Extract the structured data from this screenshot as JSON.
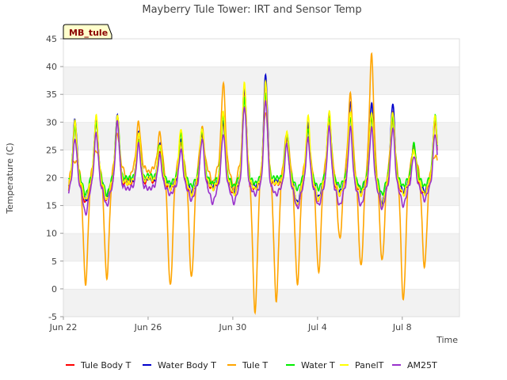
{
  "chart_data": {
    "type": "line",
    "title": "Mayberry Tule Tower: IRT and Sensor Temp",
    "badge": "MB_tule",
    "xlabel": "Time",
    "ylabel": "Temperature (C)",
    "ylim": [
      -5,
      45
    ],
    "xlim": [
      0,
      18.7
    ],
    "yticks": [
      "-5",
      "0",
      "5",
      "10",
      "15",
      "20",
      "25",
      "30",
      "35",
      "40",
      "45"
    ],
    "xticks": [
      {
        "day": 0,
        "label": "Jun 22"
      },
      {
        "day": 4,
        "label": "Jun 26"
      },
      {
        "day": 8,
        "label": "Jun 30"
      },
      {
        "day": 12,
        "label": "Jul 4"
      },
      {
        "day": 16,
        "label": "Jul 8"
      }
    ],
    "days": [
      0.3,
      1.3,
      2.3,
      3.3,
      4.3,
      5.3,
      6.3,
      7.3,
      8.3,
      9.3,
      10.3,
      11.3,
      12.3,
      13.3,
      14.3,
      15.3,
      16.3,
      17.3
    ],
    "series": [
      {
        "name": "Tule Body T",
        "color": "#ff0000",
        "base": 19.0,
        "width": 2.6,
        "min": [
          15.5,
          16,
          19,
          20,
          18,
          17,
          18,
          17,
          18,
          19,
          15,
          16,
          17,
          17,
          15,
          17,
          17,
          16
        ],
        "max": [
          29,
          30,
          31,
          27,
          25,
          27,
          28,
          30,
          36,
          37,
          27,
          29,
          31,
          31,
          31,
          32,
          26,
          30
        ]
      },
      {
        "name": "Water Body T",
        "color": "#0000cc",
        "base": 19.5,
        "width": 2.6,
        "min": [
          16,
          16.5,
          19.5,
          20,
          18.5,
          17.5,
          18.5,
          17.5,
          18.5,
          19.5,
          15.5,
          16.5,
          17.5,
          17.5,
          15.5,
          17.5,
          17.5,
          16.5
        ],
        "max": [
          30.5,
          30.5,
          31,
          28,
          26,
          27,
          28.5,
          30.5,
          36.5,
          38.5,
          27.5,
          29.5,
          31.5,
          33.5,
          33.5,
          33.5,
          25.5,
          31
        ]
      },
      {
        "name": "Tule T",
        "color": "#ffa500",
        "base": 22.0,
        "width": 2.6,
        "min": [
          1,
          2,
          19,
          21,
          0.5,
          2,
          19,
          18,
          -4,
          -2,
          1,
          3,
          9,
          4,
          5,
          -2,
          4,
          3
        ],
        "max": [
          23,
          25,
          28,
          30,
          28,
          26,
          29,
          37,
          33,
          32,
          28,
          27,
          30,
          35,
          42,
          30,
          25,
          24
        ]
      },
      {
        "name": "Water T",
        "color": "#00ee00",
        "base": 20.0,
        "width": 2.6,
        "min": [
          17,
          17,
          20,
          20.5,
          19,
          18.5,
          19,
          18.5,
          19,
          20,
          18,
          18,
          18.5,
          18,
          17,
          18.5,
          18.5,
          17.5
        ],
        "max": [
          29,
          30,
          31,
          27,
          26,
          28,
          28.5,
          31,
          34,
          35,
          28,
          29,
          31,
          31,
          31,
          31,
          26,
          31
        ]
      },
      {
        "name": "PanelT",
        "color": "#ffff00",
        "base": 19.5,
        "width": 2.6,
        "min": [
          16,
          16,
          19,
          20,
          18,
          17,
          18,
          17,
          18,
          19,
          15,
          16,
          17,
          17,
          15,
          17,
          17,
          16
        ],
        "max": [
          30,
          31,
          31,
          28,
          26,
          29,
          29,
          32,
          37,
          37,
          28,
          31,
          32,
          32,
          32,
          32,
          25,
          31
        ]
      },
      {
        "name": "AM25T",
        "color": "#9932cc",
        "base": 18.5,
        "width": 2.6,
        "min": [
          13.5,
          15,
          18,
          18,
          17,
          16,
          15.5,
          15.5,
          17,
          17,
          14.5,
          15,
          15,
          15,
          14.5,
          15,
          16,
          15
        ],
        "max": [
          27,
          28,
          30,
          26,
          24,
          25,
          27,
          28,
          33,
          34,
          26,
          27,
          29,
          29,
          29,
          29,
          24,
          28
        ]
      }
    ]
  }
}
